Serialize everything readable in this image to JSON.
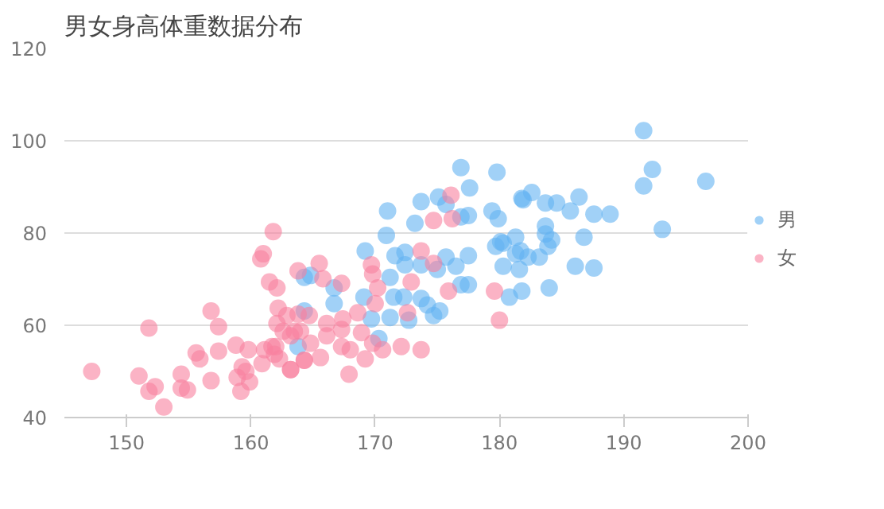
{
  "chart_data": {
    "type": "scatter",
    "title": "男女身高体重数据分布",
    "xlim": [
      145,
      200
    ],
    "ylim": [
      40,
      120
    ],
    "xticks": [
      150,
      160,
      170,
      180,
      190,
      200
    ],
    "yticks": [
      40,
      60,
      80,
      100,
      120
    ],
    "grid": "y",
    "legend": "right",
    "marker": "circle",
    "series": [
      {
        "name": "男",
        "color": "#62b3f2",
        "x": [
          176.9,
          179.8,
          177.6,
          171.0,
          173.7,
          175.1,
          175.7,
          173.2,
          170.9,
          176.9,
          177.5,
          179.4,
          179.9,
          181.3,
          181.8,
          169.2,
          171.6,
          172.4,
          172.4,
          173.7,
          175.0,
          175.7,
          176.5,
          177.5,
          176.9,
          177.5,
          179.7,
          180.3,
          180.3,
          181.3,
          181.6,
          180.8,
          181.8,
          171.2,
          171.5,
          172.3,
          173.7,
          174.2,
          174.7,
          175.2,
          171.2,
          169.1,
          166.7,
          166.7,
          164.3,
          164.3,
          164.8,
          169.7,
          170.3,
          163.8,
          172.7,
          191.6,
          192.3,
          191.6,
          196.6,
          193.1,
          181.9,
          182.6,
          183.7,
          184.6,
          185.7,
          186.4,
          187.6,
          188.9,
          183.7,
          183.7,
          184.2,
          186.8,
          180.1,
          181.7,
          182.3,
          183.2,
          183.9,
          186.1,
          187.6,
          184.0
        ],
        "values": [
          94.2,
          93.2,
          89.8,
          84.8,
          86.8,
          87.8,
          86.2,
          82.1,
          79.5,
          83.5,
          83.8,
          84.8,
          83.1,
          79.1,
          87.5,
          76.1,
          75.1,
          75.8,
          73.1,
          73.1,
          72.1,
          74.8,
          72.8,
          75.1,
          68.8,
          68.8,
          77.1,
          77.8,
          72.8,
          75.5,
          72.1,
          66.1,
          67.4,
          70.4,
          66.1,
          66.1,
          65.8,
          64.4,
          62.1,
          63.1,
          61.7,
          66.1,
          68.1,
          64.7,
          63.1,
          70.4,
          70.8,
          61.4,
          57.1,
          55.4,
          61.1,
          102.2,
          93.8,
          90.2,
          91.2,
          80.8,
          87.2,
          88.8,
          86.5,
          86.5,
          84.8,
          87.8,
          84.1,
          84.1,
          81.5,
          79.8,
          78.5,
          79.1,
          78.1,
          76.1,
          74.8,
          74.8,
          77.1,
          72.8,
          72.4,
          68.1
        ]
      },
      {
        "name": "女",
        "color": "#f8809e",
        "x": [
          161.8,
          161.0,
          160.8,
          161.5,
          162.1,
          156.8,
          157.4,
          151.8,
          162.2,
          162.1,
          163.8,
          163.5,
          155.6,
          155.9,
          157.4,
          158.8,
          159.8,
          161.1,
          161.7,
          161.9,
          160.9,
          162.3,
          163.2,
          164.3,
          159.3,
          159.6,
          158.9,
          159.9,
          159.2,
          156.8,
          154.4,
          154.4,
          154.9,
          152.3,
          151.8,
          151.0,
          147.2,
          153.0,
          165.5,
          163.8,
          165.8,
          167.3,
          169.7,
          169.8,
          170.2,
          170.0,
          168.6,
          167.4,
          167.3,
          166.1,
          164.7,
          162.9,
          162.6,
          162.0,
          163.2,
          164.0,
          164.8,
          164.3,
          163.2,
          165.6,
          166.1,
          167.3,
          168.0,
          167.9,
          169.2,
          169.8,
          170.6,
          168.9,
          172.6,
          172.1,
          173.7,
          172.9,
          173.7,
          174.7,
          176.1,
          176.2,
          174.7,
          175.9,
          179.6,
          180.0
        ],
        "values": [
          80.3,
          75.5,
          74.4,
          69.4,
          68.1,
          63.1,
          59.7,
          59.4,
          63.7,
          60.4,
          62.4,
          58.7,
          54.0,
          52.7,
          54.4,
          55.7,
          54.7,
          54.7,
          55.4,
          53.7,
          51.7,
          52.7,
          50.4,
          52.4,
          51.0,
          50.0,
          48.7,
          47.7,
          45.7,
          48.0,
          49.4,
          46.4,
          46.0,
          46.7,
          45.7,
          49.0,
          50.0,
          42.3,
          73.4,
          71.8,
          70.1,
          69.1,
          73.1,
          71.1,
          68.1,
          64.7,
          62.7,
          61.4,
          59.1,
          60.4,
          62.1,
          62.1,
          58.7,
          55.4,
          57.7,
          58.7,
          56.1,
          52.4,
          50.4,
          53.0,
          57.7,
          55.4,
          54.7,
          49.4,
          52.7,
          56.1,
          54.7,
          58.4,
          62.7,
          55.4,
          54.7,
          69.4,
          76.1,
          82.7,
          88.2,
          83.1,
          73.4,
          67.4,
          67.4,
          61.1
        ]
      }
    ]
  }
}
